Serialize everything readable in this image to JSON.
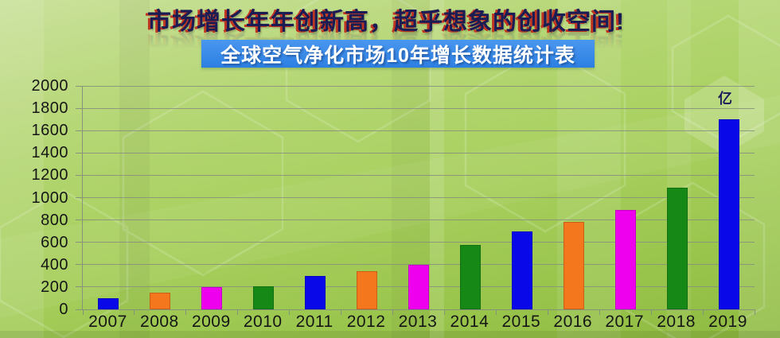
{
  "header": {
    "title": "市场增长年年创新高，超乎想象的创收空间!",
    "subtitle": "全球空气净化市场10年增长数据统计表"
  },
  "chart_data": {
    "type": "bar",
    "title": "全球空气净化市场10年增长数据统计表",
    "unit_label": "亿",
    "categories": [
      "2007",
      "2008",
      "2009",
      "2010",
      "2011",
      "2012",
      "2013",
      "2014",
      "2015",
      "2016",
      "2017",
      "2018",
      "2019"
    ],
    "values": [
      100,
      150,
      200,
      210,
      300,
      340,
      400,
      580,
      700,
      780,
      890,
      1090,
      1700
    ],
    "xlabel": "",
    "ylabel": "",
    "ylim": [
      0,
      2000
    ],
    "ytick_step": 200,
    "grid": true,
    "legend_position": "none",
    "bar_colors": [
      "#0808e8",
      "#f5771d",
      "#ee00ee",
      "#168816"
    ]
  },
  "colors": {
    "title_navy": "#1c1c55",
    "title_red": "#c03422",
    "banner_blue": "#2c7fe2",
    "grid": "#87927b",
    "label": "#161616"
  }
}
